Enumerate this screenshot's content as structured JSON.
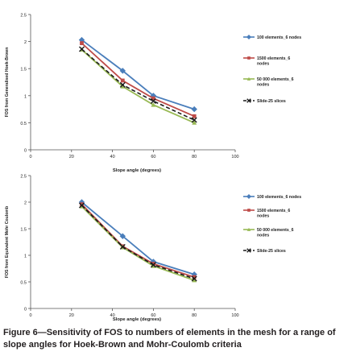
{
  "caption": "Figure 6—Sensitivity of FOS to numbers of elements in the mesh for a range of slope angles for Hoek-Brown and Mohr-Coulomb criteria",
  "colors": {
    "blue": "#4a7ebb",
    "red": "#be4b48",
    "green": "#98b954",
    "black": "#1a1a1a"
  },
  "chart_data": [
    {
      "type": "line",
      "title": "",
      "xlabel": "Slope angle (degrees)",
      "ylabel": "FOS from Generalised Hoek-Brown",
      "xlim": [
        0,
        100
      ],
      "ylim": [
        0,
        2.5
      ],
      "xticks": [
        "0",
        "20",
        "40",
        "60",
        "80",
        "100"
      ],
      "yticks": [
        "0",
        "0.5",
        "1",
        "1.5",
        "2",
        "2.5"
      ],
      "grid": false,
      "legend_position": "right",
      "x": [
        25,
        45,
        60,
        80
      ],
      "series": [
        {
          "name": "100 elements_6 nodes",
          "color": "#4a7ebb",
          "marker": "diamond",
          "dash": "solid",
          "values": [
            2.03,
            1.46,
            1.0,
            0.75
          ]
        },
        {
          "name": "1500 elements_6 nodes",
          "color": "#be4b48",
          "marker": "square",
          "dash": "solid",
          "values": [
            1.97,
            1.28,
            0.95,
            0.62
          ]
        },
        {
          "name": "50 000 elements_6 nodes",
          "color": "#98b954",
          "marker": "triangle",
          "dash": "solid",
          "values": [
            1.85,
            1.17,
            0.83,
            0.5
          ]
        },
        {
          "name": "Slide-25 slices",
          "color": "#1a1a1a",
          "marker": "x",
          "dash": "dashed",
          "values": [
            1.86,
            1.2,
            0.9,
            0.55
          ]
        }
      ]
    },
    {
      "type": "line",
      "title": "",
      "xlabel": "Slope angle (degrees)",
      "ylabel": "FOS from Equivalent Mohr Coulomb",
      "xlim": [
        0,
        100
      ],
      "ylim": [
        0,
        2.5
      ],
      "xticks": [
        "0",
        "20",
        "40",
        "60",
        "80",
        "100"
      ],
      "yticks": [
        "0",
        "0.5",
        "1",
        "1.5",
        "2",
        "2.5"
      ],
      "grid": false,
      "legend_position": "right",
      "x": [
        25,
        45,
        60,
        80
      ],
      "series": [
        {
          "name": "100 elements_6 nodes",
          "color": "#4a7ebb",
          "marker": "diamond",
          "dash": "solid",
          "values": [
            2.0,
            1.36,
            0.88,
            0.64
          ]
        },
        {
          "name": "1500 elements_6 nodes",
          "color": "#be4b48",
          "marker": "square",
          "dash": "solid",
          "values": [
            1.96,
            1.17,
            0.84,
            0.59
          ]
        },
        {
          "name": "50 000 elements_6 nodes",
          "color": "#98b954",
          "marker": "triangle",
          "dash": "solid",
          "values": [
            1.92,
            1.15,
            0.8,
            0.53
          ]
        },
        {
          "name": "Slide-25 slices",
          "color": "#1a1a1a",
          "marker": "x",
          "dash": "dashed",
          "values": [
            1.94,
            1.16,
            0.82,
            0.56
          ]
        }
      ]
    }
  ]
}
